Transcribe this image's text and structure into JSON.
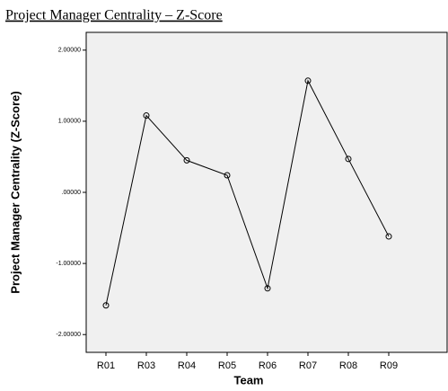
{
  "chart_data": {
    "type": "line",
    "title": "Project Manager Centrality – Z-Score",
    "x_label": "Team",
    "y_label": "Project Manager Centrality (Z-Score)",
    "categories": [
      "R01",
      "R03",
      "R04",
      "R05",
      "R06",
      "R07",
      "R08",
      "R09"
    ],
    "values": [
      -1.59,
      1.08,
      0.45,
      0.24,
      -1.35,
      1.57,
      0.47,
      -0.62
    ],
    "color": "#000000",
    "ylim": [
      -2.25,
      2.25
    ],
    "yticks": [
      {
        "value": -2,
        "label": "-2.00000"
      },
      {
        "value": -1,
        "label": "-1.00000"
      },
      {
        "value": 0,
        "label": ".00000"
      },
      {
        "value": 1,
        "label": "1.00000"
      },
      {
        "value": 2,
        "label": "2.00000"
      }
    ]
  }
}
